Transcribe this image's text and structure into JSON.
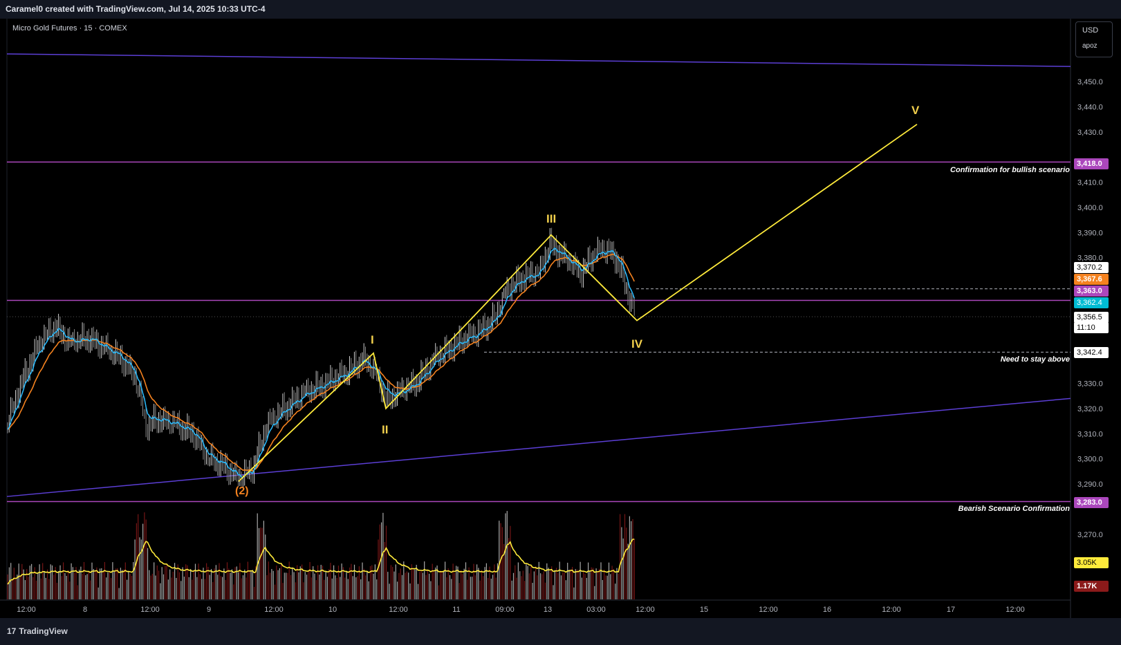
{
  "header": {
    "text": "Caramel0 created with TradingView.com, Jul 14, 2025 10:33 UTC-4"
  },
  "symbol": {
    "title": "Micro Gold Futures · 15 · COMEX"
  },
  "currency": {
    "code": "USD",
    "unit": "apoz"
  },
  "footer": {
    "logo": "17",
    "brand": "TradingView"
  },
  "colors": {
    "background": "#000000",
    "up_candle": "#c8c8c8",
    "ema_fast": "#29b6f6",
    "ema_slow": "#f5821f",
    "purple_line": "#ab47bc",
    "trend_line": "#5c3fd6",
    "wave_line": "#ffeb3b",
    "volume_ma": "#ffeb3b",
    "volume_bar": "#8b1a1a"
  },
  "chart_data": {
    "type": "candlestick",
    "x_ticks": [
      "12:00",
      "8",
      "12:00",
      "9",
      "12:00",
      "10",
      "12:00",
      "11",
      "09:00",
      "13",
      "03:00",
      "12:00",
      "15",
      "12:00",
      "16",
      "12:00",
      "17",
      "12:00"
    ],
    "y_ticks": [
      "3,450.0",
      "3,440.0",
      "3,430.0",
      "3,410.0",
      "3,400.0",
      "3,390.0",
      "3,380.0",
      "3,330.0",
      "3,320.0",
      "3,310.0",
      "3,300.0",
      "3,290.0",
      "3,270.0"
    ],
    "ylim": [
      3260,
      3460
    ],
    "horizontal_levels": [
      {
        "price": 3418.0,
        "label": "3,418.0",
        "annotation": "Confirmation for bullish scenario",
        "color": "#ab47bc"
      },
      {
        "price": 3363.0,
        "label": "3,363.0",
        "annotation": "",
        "color": "#ab47bc"
      },
      {
        "price": 3283.0,
        "label": "3,283.0",
        "annotation": "Bearish Scenario Confirmation",
        "color": "#ab47bc"
      }
    ],
    "dashed_levels": [
      {
        "price": 3342.4,
        "label": "3,342.4",
        "annotation": "Need to stay above"
      },
      {
        "price": 3367.6,
        "label": "3,367.6",
        "annotation": ""
      }
    ],
    "price_tags": [
      {
        "label": "3,370.2",
        "bg": "#ffffff",
        "fg": "#000000"
      },
      {
        "label": "3,367.6",
        "bg": "#f5821f",
        "fg": "#ffffff"
      },
      {
        "label": "3,362.4",
        "bg": "#00bcd4",
        "fg": "#ffffff"
      },
      {
        "label": "3,356.5",
        "bg": "#ffffff",
        "fg": "#000000"
      },
      {
        "label": "11:10",
        "bg": "#ffffff",
        "fg": "#000000"
      },
      {
        "label": "3.05K",
        "bg": "#ffeb3b",
        "fg": "#000000"
      },
      {
        "label": "1.17K",
        "bg": "#8b1a1a",
        "fg": "#ffffff"
      }
    ],
    "elliott_wave": {
      "labels": [
        "(2)",
        "I",
        "II",
        "III",
        "IV",
        "V"
      ],
      "prices": [
        3291,
        3342,
        3320,
        3389,
        3355,
        3433
      ]
    },
    "trend_lines": [
      {
        "name": "upper channel",
        "from": 3461,
        "to": 3456
      },
      {
        "name": "lower channel",
        "from": 3285,
        "to": 3324
      }
    ]
  }
}
